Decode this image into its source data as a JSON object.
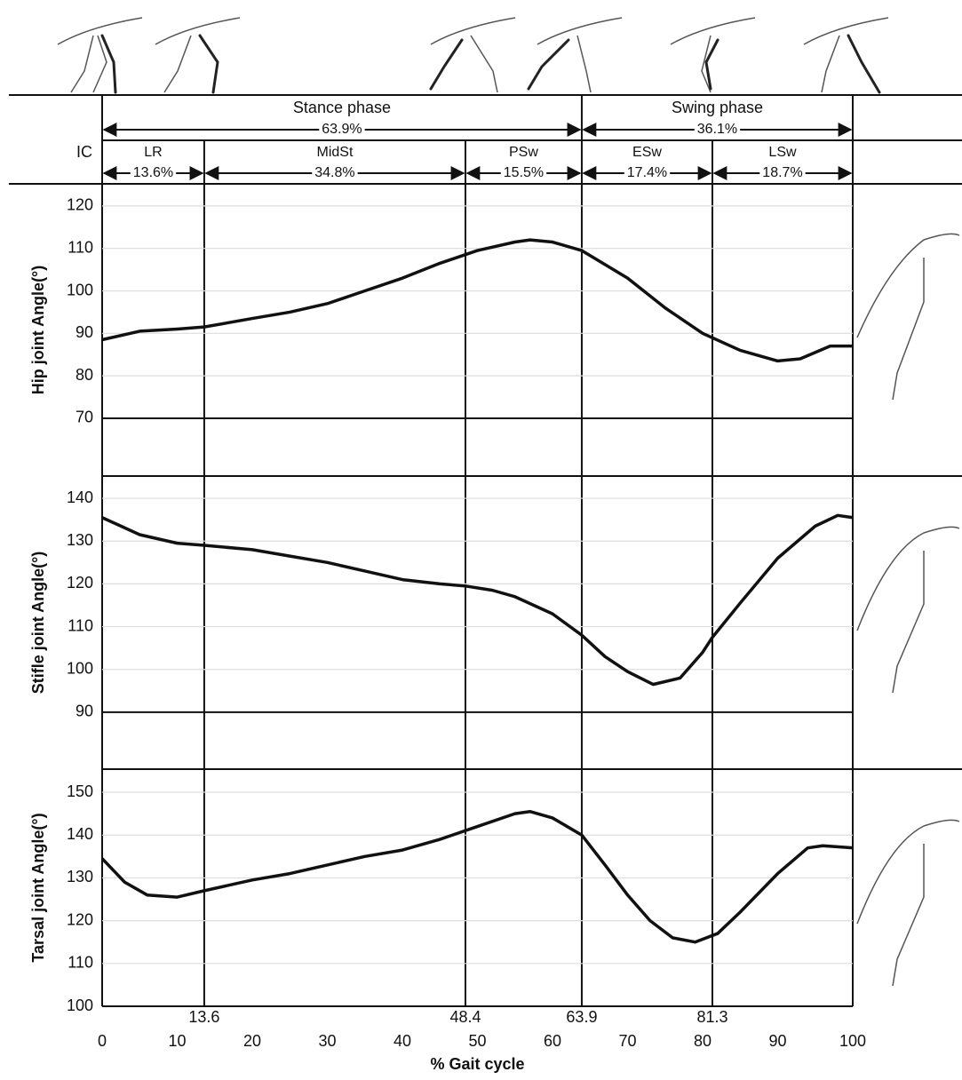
{
  "phases": {
    "initial": "IC",
    "main": [
      {
        "name": "Stance phase",
        "share": "63.9%"
      },
      {
        "name": "Swing phase",
        "share": "36.1%"
      }
    ],
    "sub": [
      {
        "name": "LR",
        "share": "13.6%"
      },
      {
        "name": "MidSt",
        "share": "34.8%"
      },
      {
        "name": "PSw",
        "share": "15.5%"
      },
      {
        "name": "ESw",
        "share": "17.4%"
      },
      {
        "name": "LSw",
        "share": "18.7%"
      }
    ]
  },
  "chart_data": [
    {
      "type": "line",
      "ylabel": "Hip joint Angle(°)",
      "xlim": [
        0,
        100
      ],
      "ylim": [
        56.4,
        125.2
      ],
      "yticks": [
        70,
        80,
        90,
        100,
        110,
        120
      ],
      "grid": true,
      "x": [
        0,
        5,
        10,
        13.6,
        20,
        25,
        30,
        35,
        40,
        45,
        50,
        55,
        57,
        60,
        63.9,
        70,
        75,
        80,
        85,
        90,
        93,
        97,
        100
      ],
      "series": [
        {
          "color": "#111111",
          "values": [
            88.5,
            90.5,
            91,
            91.5,
            93.5,
            95,
            97,
            100,
            103,
            106.5,
            109.5,
            111.5,
            112,
            111.5,
            109.5,
            103,
            96,
            90,
            86,
            83.5,
            84,
            87,
            87
          ]
        }
      ]
    },
    {
      "type": "line",
      "ylabel": "Stifle joint Angle(°)",
      "xlim": [
        0,
        100
      ],
      "ylim": [
        76.7,
        145.2
      ],
      "yticks": [
        90,
        100,
        110,
        120,
        130,
        140
      ],
      "grid": true,
      "x": [
        0,
        5,
        10,
        13.6,
        20,
        25,
        30,
        35,
        40,
        45,
        48.4,
        52,
        55,
        60,
        63.9,
        67,
        70,
        73.4,
        77,
        80,
        81.3,
        85,
        90,
        95,
        98,
        100
      ],
      "series": [
        {
          "color": "#111111",
          "values": [
            135.5,
            131.5,
            129.5,
            129,
            128,
            126.5,
            125,
            123,
            121,
            120,
            119.5,
            118.5,
            117,
            113,
            108,
            103,
            99.5,
            96.5,
            98,
            104,
            107.5,
            115.5,
            126,
            133.5,
            136,
            135.5
          ]
        }
      ]
    },
    {
      "type": "line",
      "ylabel": "Tarsal joint Angle(°)",
      "xlabel": "% Gait cycle",
      "xlim": [
        0,
        100
      ],
      "ylim": [
        100,
        155.4
      ],
      "yticks": [
        100,
        110,
        120,
        130,
        140,
        150
      ],
      "grid": true,
      "xticks": [
        0,
        10,
        20,
        30,
        40,
        50,
        60,
        70,
        80,
        90,
        100
      ],
      "phase_ticks": [
        13.6,
        48.4,
        63.9,
        81.3
      ],
      "x": [
        0,
        3,
        6,
        10,
        13.6,
        20,
        25,
        30,
        35,
        40,
        45,
        50,
        55,
        57,
        60,
        63.9,
        67,
        70,
        73,
        76,
        79,
        82,
        85,
        90,
        94,
        96,
        100
      ],
      "series": [
        {
          "color": "#111111",
          "values": [
            134.5,
            129,
            126,
            125.5,
            127,
            129.5,
            131,
            133,
            135,
            136.5,
            139,
            142,
            145,
            145.5,
            144,
            140,
            133,
            126,
            120,
            116,
            115,
            117,
            122,
            131,
            137,
            137.5,
            137
          ]
        }
      ]
    }
  ]
}
